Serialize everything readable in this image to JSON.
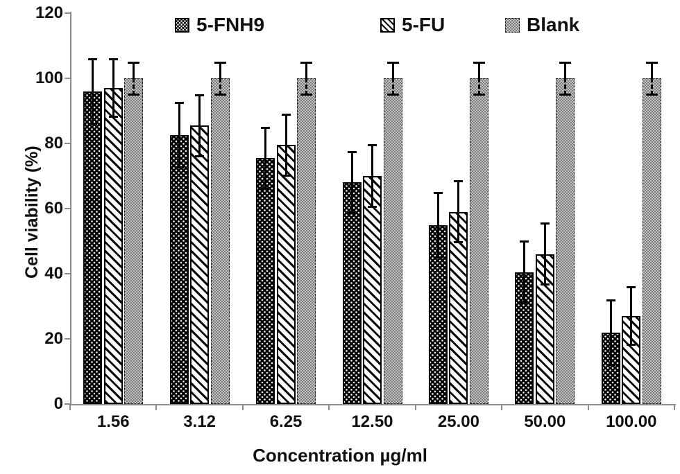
{
  "figure": {
    "y_axis_title": "Cell viability (%)",
    "x_axis_title": "Concentration µg/ml"
  },
  "chart_data": {
    "type": "bar",
    "title": "",
    "xlabel": "Concentration µg/ml",
    "ylabel": "Cell viability (%)",
    "categories": [
      "1.56",
      "3.12",
      "6.25",
      "12.50",
      "25.00",
      "50.00",
      "100.00"
    ],
    "series": [
      {
        "name": "5-FNH9",
        "pattern": "black-dots",
        "values": [
          96,
          82.5,
          75.5,
          68,
          55,
          40.5,
          22
        ],
        "errors": [
          10,
          10,
          9.5,
          9.5,
          10,
          9.5,
          10
        ]
      },
      {
        "name": "5-FU",
        "pattern": "diagonal-stripes",
        "values": [
          97,
          85.5,
          79.5,
          70,
          59,
          46,
          27
        ],
        "errors": [
          9,
          9.5,
          9.5,
          9.5,
          9.5,
          9.5,
          9
        ]
      },
      {
        "name": "Blank",
        "pattern": "gray-checker",
        "values": [
          100,
          100,
          100,
          100,
          100,
          100,
          100
        ],
        "errors": [
          5,
          5,
          5,
          5,
          5,
          5,
          5
        ]
      }
    ],
    "ylim": [
      0,
      120
    ],
    "ytick_step": 20,
    "yticks": [
      "0",
      "20",
      "40",
      "60",
      "80",
      "100",
      "120"
    ],
    "grid": false,
    "legend_position": "top-inside",
    "error_bars": true
  },
  "colors": {
    "axis": "#8c8c8c",
    "text": "#111111",
    "bar_border": "#000000",
    "blank_fill": "#9b9b9b"
  }
}
